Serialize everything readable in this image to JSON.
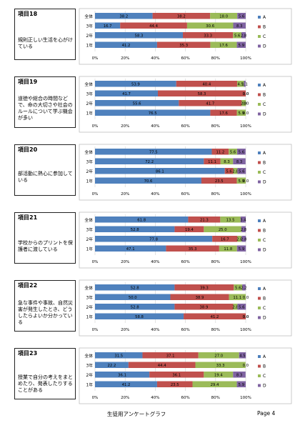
{
  "colors": {
    "A": "#4f81bd",
    "B": "#c0504d",
    "C": "#9bbb59",
    "D": "#8064a2"
  },
  "legend": [
    "A",
    "B",
    "C",
    "D"
  ],
  "x_ticks": [
    "0%",
    "20%",
    "40%",
    "60%",
    "80%",
    "100%"
  ],
  "row_labels": [
    "全体",
    "3年",
    "2年",
    "1年"
  ],
  "footer": {
    "title": "生徒用アンケートグラフ",
    "page": "Page 4"
  },
  "chart_data": [
    {
      "type": "bar",
      "stacked": true,
      "orientation": "horizontal",
      "item": "項目18",
      "question": "規則正しい生活を心がけている",
      "categories": [
        "全体",
        "3年",
        "2年",
        "1年"
      ],
      "series": [
        {
          "name": "A",
          "values": [
            38.2,
            16.7,
            58.3,
            41.2
          ]
        },
        {
          "name": "B",
          "values": [
            38.2,
            44.4,
            33.3,
            35.3
          ]
        },
        {
          "name": "C",
          "values": [
            18.0,
            30.6,
            5.6,
            17.6
          ]
        },
        {
          "name": "D",
          "values": [
            5.6,
            8.3,
            2.8,
            5.9
          ]
        }
      ],
      "xlim": [
        0,
        100
      ]
    },
    {
      "type": "bar",
      "stacked": true,
      "orientation": "horizontal",
      "item": "項目19",
      "question": "道徳や総合の時間などで、命の大切さや社会のルールについて学ぶ機会が多い",
      "categories": [
        "全体",
        "3年",
        "2年",
        "1年"
      ],
      "series": [
        {
          "name": "A",
          "values": [
            53.9,
            41.7,
            55.6,
            76.5
          ]
        },
        {
          "name": "B",
          "values": [
            40.4,
            58.3,
            41.7,
            17.6
          ]
        },
        {
          "name": "C",
          "values": [
            4.5,
            0.0,
            2.8,
            5.9
          ]
        },
        {
          "name": "D",
          "values": [
            1.1,
            0.0,
            0.0,
            0.0
          ]
        }
      ],
      "xlim": [
        0,
        100
      ]
    },
    {
      "type": "bar",
      "stacked": true,
      "orientation": "horizontal",
      "item": "項目20",
      "question": "部活動に熱心に参加している",
      "categories": [
        "全体",
        "3年",
        "2年",
        "1年"
      ],
      "series": [
        {
          "name": "A",
          "values": [
            77.5,
            72.2,
            86.1,
            70.6
          ]
        },
        {
          "name": "B",
          "values": [
            11.2,
            11.1,
            5.6,
            23.5
          ]
        },
        {
          "name": "C",
          "values": [
            5.6,
            8.3,
            2.8,
            5.9
          ]
        },
        {
          "name": "D",
          "values": [
            5.6,
            8.3,
            5.6,
            0.0
          ]
        }
      ],
      "xlim": [
        0,
        100
      ]
    },
    {
      "type": "bar",
      "stacked": true,
      "orientation": "horizontal",
      "item": "項目21",
      "question": "学校からのプリントを保護者に渡している",
      "categories": [
        "全体",
        "3年",
        "2年",
        "1年"
      ],
      "series": [
        {
          "name": "A",
          "values": [
            61.8,
            52.8,
            77.8,
            47.1
          ]
        },
        {
          "name": "B",
          "values": [
            21.3,
            19.4,
            16.7,
            35.3
          ]
        },
        {
          "name": "C",
          "values": [
            13.5,
            25.0,
            2.8,
            11.8
          ]
        },
        {
          "name": "D",
          "values": [
            3.4,
            2.8,
            2.8,
            5.9
          ]
        }
      ],
      "xlim": [
        0,
        100
      ]
    },
    {
      "type": "bar",
      "stacked": true,
      "orientation": "horizontal",
      "item": "項目22",
      "question": "急な事件や事故、自然災害が発生したとき、どうしたらよいか分かっている",
      "categories": [
        "全体",
        "3年",
        "2年",
        "1年"
      ],
      "series": [
        {
          "name": "A",
          "values": [
            52.8,
            50.0,
            52.8,
            58.8
          ]
        },
        {
          "name": "B",
          "values": [
            39.3,
            38.9,
            38.9,
            41.2
          ]
        },
        {
          "name": "C",
          "values": [
            5.6,
            11.1,
            2.8,
            0.0
          ]
        },
        {
          "name": "D",
          "values": [
            2.2,
            0.0,
            5.6,
            0.0
          ]
        }
      ],
      "xlim": [
        0,
        100
      ]
    },
    {
      "type": "bar",
      "stacked": true,
      "orientation": "horizontal",
      "item": "項目23",
      "question": "授業で自分の考えをまとめたり、発表したりすることがある",
      "categories": [
        "全体",
        "3年",
        "2年",
        "1年"
      ],
      "series": [
        {
          "name": "A",
          "values": [
            31.5,
            22.2,
            36.1,
            41.2
          ]
        },
        {
          "name": "B",
          "values": [
            37.1,
            44.4,
            36.1,
            23.5
          ]
        },
        {
          "name": "C",
          "values": [
            27.0,
            33.3,
            19.4,
            29.4
          ]
        },
        {
          "name": "D",
          "values": [
            4.5,
            0.0,
            8.3,
            5.9
          ]
        }
      ],
      "xlim": [
        0,
        100
      ]
    }
  ]
}
